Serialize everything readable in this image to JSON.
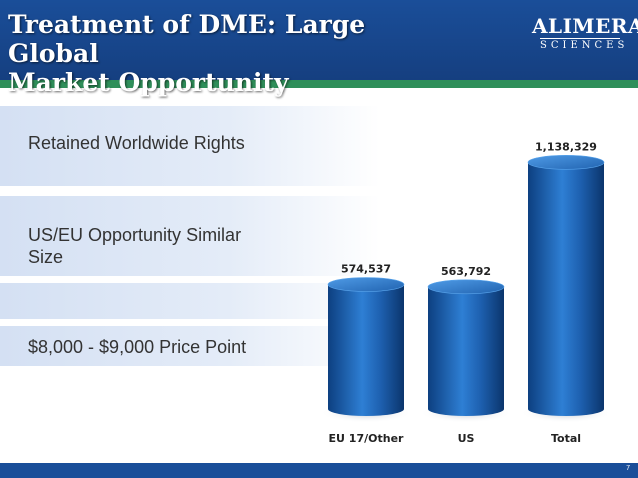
{
  "slide": {
    "title_line1": "Treatment of DME: Large Global",
    "title_line2": "Market Opportunity",
    "logo_main": "ALIMERA",
    "logo_sub": "SCIENCES",
    "bullets": [
      "Retained Worldwide Rights",
      "US/EU Opportunity Similar",
      "Size",
      "$8,000 - $9,000 Price Point"
    ],
    "page_number": "7"
  },
  "colors": {
    "header": "#1a4e99",
    "accent_line": "#2f8f5a",
    "bar": "#1f63b5"
  },
  "chart_data": {
    "type": "bar",
    "categories": [
      "EU 17/Other",
      "US",
      "Total"
    ],
    "values": [
      574537,
      563792,
      1138329
    ],
    "data_labels": [
      "574,537",
      "563,792",
      "1,138,329"
    ],
    "title": "",
    "xlabel": "",
    "ylabel": "",
    "ylim": [
      0,
      1200000
    ],
    "grid": false,
    "legend": "none"
  }
}
